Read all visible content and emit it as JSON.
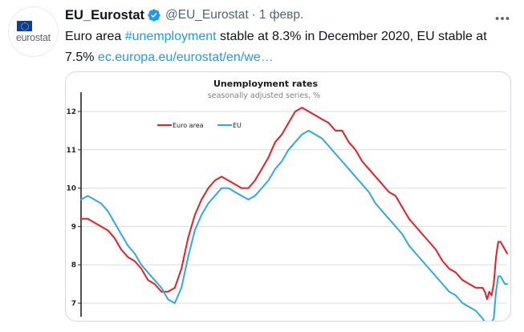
{
  "tweet": {
    "display_name": "EU_Eurostat",
    "verified": true,
    "handle": "@EU_Eurostat",
    "separator": "·",
    "timestamp": "1 февр.",
    "avatar_brand": "eurostat",
    "line1": {
      "pre": "Euro area ",
      "hashtag": "#unemployment",
      "post": " stable at 8.3% in December 2020, EU stable at"
    },
    "line2": {
      "pre": "7.5% ",
      "link": "ec.europa.eu/eurostat/en/we…"
    }
  },
  "colors": {
    "link": "#1d9bf0",
    "verified_badge": "#1d9bf0",
    "text_primary": "#0f1419",
    "text_secondary": "#536471",
    "card_border": "#cfd9de",
    "grid": "#dcdcdc",
    "euro_area_line": "#ec1c24",
    "eu_line": "#2aabe2"
  },
  "chart_data": {
    "type": "line",
    "title": "Unemployment rates",
    "subtitle": "seasonally adjusted series, %",
    "grid": true,
    "legend_position": "top",
    "y_ticks": [
      7,
      8,
      9,
      10,
      11,
      12
    ],
    "ylim": [
      6.4,
      12.4
    ],
    "x_range": [
      2005.0,
      2020.917
    ],
    "x_unit": "year, monthly series Jan 2005 – Dec 2020 (x-axis labels cropped out of view)",
    "x": [
      2005.0,
      2005.25,
      2005.5,
      2005.75,
      2006.0,
      2006.25,
      2006.5,
      2006.75,
      2007.0,
      2007.25,
      2007.5,
      2007.75,
      2008.0,
      2008.25,
      2008.5,
      2008.75,
      2009.0,
      2009.25,
      2009.5,
      2009.75,
      2010.0,
      2010.25,
      2010.5,
      2010.75,
      2011.0,
      2011.25,
      2011.5,
      2011.75,
      2012.0,
      2012.25,
      2012.5,
      2012.75,
      2013.0,
      2013.25,
      2013.5,
      2013.75,
      2014.0,
      2014.25,
      2014.5,
      2014.75,
      2015.0,
      2015.25,
      2015.5,
      2015.75,
      2016.0,
      2016.25,
      2016.5,
      2016.75,
      2017.0,
      2017.25,
      2017.5,
      2017.75,
      2018.0,
      2018.25,
      2018.5,
      2018.75,
      2019.0,
      2019.25,
      2019.5,
      2019.75,
      2020.0,
      2020.083,
      2020.167,
      2020.25,
      2020.333,
      2020.417,
      2020.5,
      2020.583,
      2020.667,
      2020.75,
      2020.833,
      2020.917
    ],
    "series": [
      {
        "name": "Euro area",
        "color": "#ec1c24",
        "end_value_pct": 8.3,
        "values": [
          9.2,
          9.2,
          9.1,
          9.0,
          8.9,
          8.7,
          8.4,
          8.2,
          8.1,
          7.9,
          7.6,
          7.5,
          7.3,
          7.3,
          7.4,
          7.9,
          8.7,
          9.3,
          9.7,
          10.0,
          10.2,
          10.3,
          10.2,
          10.1,
          10.0,
          10.0,
          10.2,
          10.5,
          10.8,
          11.2,
          11.4,
          11.7,
          12.0,
          12.1,
          12.0,
          11.9,
          11.8,
          11.7,
          11.5,
          11.5,
          11.2,
          11.0,
          10.7,
          10.5,
          10.3,
          10.1,
          9.9,
          9.8,
          9.5,
          9.2,
          9.0,
          8.8,
          8.6,
          8.4,
          8.1,
          7.9,
          7.8,
          7.6,
          7.5,
          7.4,
          7.4,
          7.3,
          7.1,
          7.3,
          7.2,
          7.5,
          8.2,
          8.6,
          8.6,
          8.5,
          8.4,
          8.3
        ]
      },
      {
        "name": "EU",
        "color": "#2aabe2",
        "end_value_pct": 7.5,
        "values": [
          9.7,
          9.8,
          9.7,
          9.6,
          9.4,
          9.1,
          8.8,
          8.5,
          8.3,
          8.0,
          7.8,
          7.6,
          7.4,
          7.1,
          7.0,
          7.4,
          8.2,
          8.9,
          9.3,
          9.6,
          9.8,
          10.0,
          10.0,
          9.9,
          9.8,
          9.7,
          9.8,
          10.0,
          10.2,
          10.5,
          10.7,
          11.0,
          11.2,
          11.4,
          11.5,
          11.4,
          11.3,
          11.1,
          10.9,
          10.7,
          10.5,
          10.3,
          10.1,
          9.9,
          9.6,
          9.4,
          9.2,
          9.0,
          8.8,
          8.5,
          8.3,
          8.1,
          7.9,
          7.7,
          7.5,
          7.3,
          7.2,
          7.0,
          6.9,
          6.8,
          6.6,
          6.5,
          6.4,
          6.4,
          6.5,
          6.6,
          7.3,
          7.7,
          7.7,
          7.6,
          7.5,
          7.5
        ]
      }
    ]
  }
}
